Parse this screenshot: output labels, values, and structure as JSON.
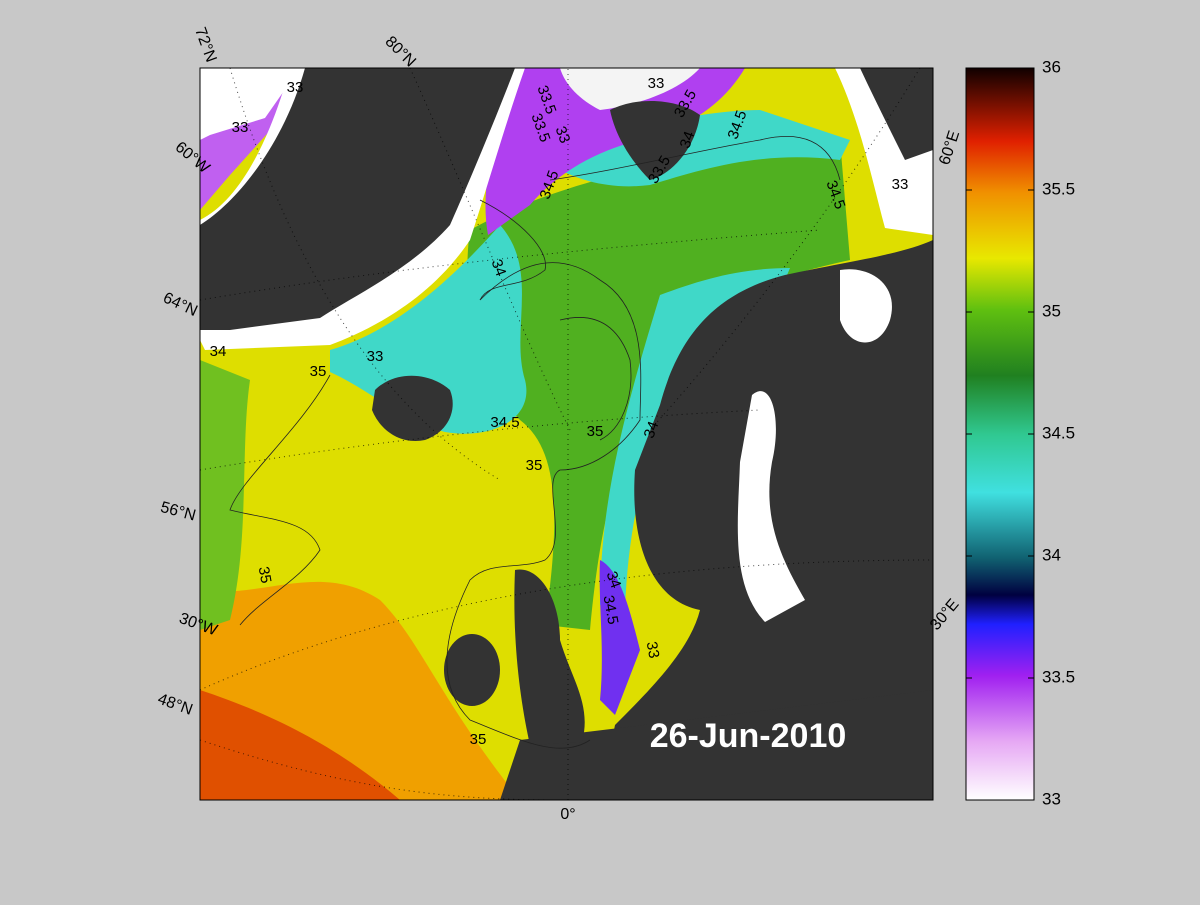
{
  "map": {
    "date": "26-Jun-2010",
    "grid_labels": [
      "72°N",
      "80°N",
      "60°W",
      "64°N",
      "56°N",
      "30°W",
      "48°N",
      "0°",
      "30°E",
      "60°E"
    ],
    "contour_labels": [
      33,
      33,
      33.5,
      33.5,
      33,
      33,
      33.5,
      34.5,
      34,
      33.5,
      34.5,
      33,
      34.5,
      34,
      34,
      33,
      35,
      34.5,
      35,
      34,
      35,
      35,
      34.5,
      34,
      33,
      35
    ],
    "colorbar": {
      "lim": [
        33,
        36
      ],
      "ticks": [
        33,
        33.5,
        34,
        34.5,
        35,
        35.5,
        36
      ]
    }
  }
}
